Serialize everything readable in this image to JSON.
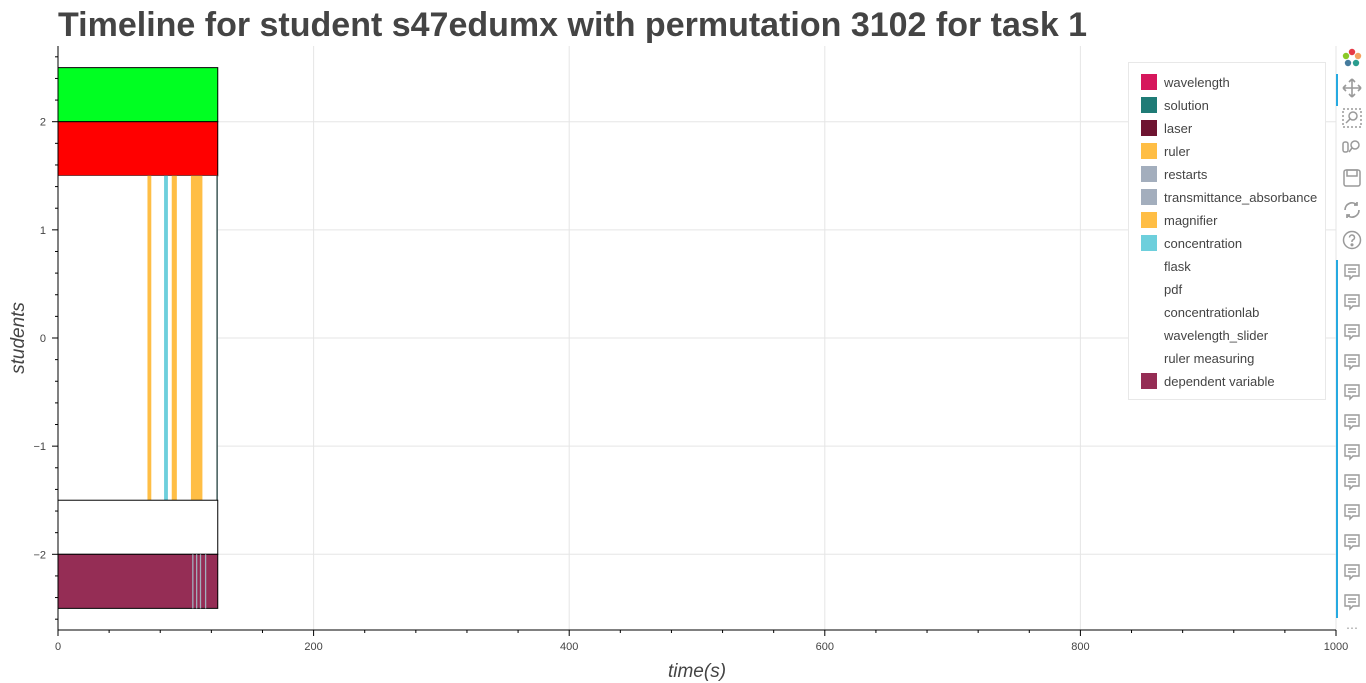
{
  "title": "Timeline for student s47edumx with permutation 3102 for task 1",
  "chart_data": {
    "type": "bar",
    "title": "Timeline for student s47edumx with permutation 3102 for task 1",
    "xlabel": "time(s)",
    "ylabel": "students",
    "xlim": [
      0,
      1000
    ],
    "ylim": [
      -2.7,
      2.7
    ],
    "x_ticks": [
      0,
      200,
      400,
      600,
      800,
      1000
    ],
    "y_ticks": [
      -2,
      -1,
      0,
      1,
      2
    ],
    "x_tick_labels": [
      "0",
      "200",
      "400",
      "600",
      "800",
      "1000"
    ],
    "y_tick_labels": [
      "−2",
      "−1",
      "0",
      "1",
      "2"
    ],
    "grid": true,
    "legend_position": "top-right",
    "legend": [
      {
        "name": "wavelength",
        "color": "#d6175c"
      },
      {
        "name": "solution",
        "color": "#1f7b76"
      },
      {
        "name": "laser",
        "color": "#6e1431"
      },
      {
        "name": "ruler",
        "color": "#ffbe45"
      },
      {
        "name": "restarts",
        "color": "#a3aebd"
      },
      {
        "name": "transmittance_absorbance",
        "color": "#a3aebd"
      },
      {
        "name": "magnifier",
        "color": "#ffbe45"
      },
      {
        "name": "concentration",
        "color": "#6dcfdc"
      },
      {
        "name": "flask",
        "color": "#ffffff"
      },
      {
        "name": "pdf",
        "color": "#ffffff"
      },
      {
        "name": "concentrationlab",
        "color": "#ffffff"
      },
      {
        "name": "wavelength_slider",
        "color": "#ffffff"
      },
      {
        "name": "ruler measuring",
        "color": "#ffffff"
      },
      {
        "name": "dependent variable",
        "color": "#952d55"
      }
    ],
    "bars": [
      {
        "name": "top-band",
        "x0": 0,
        "x1": 125,
        "y0": 2.0,
        "y1": 2.5,
        "color": "#00ff22",
        "outline": true
      },
      {
        "name": "red-band",
        "x0": 0,
        "x1": 125,
        "y0": 1.5,
        "y1": 2.0,
        "color": "#ff0000",
        "outline": true
      },
      {
        "name": "activity-band-bg",
        "x0": 0,
        "x1": 125,
        "y0": -1.5,
        "y1": 1.5,
        "color": "#ffffff",
        "outline": false
      },
      {
        "name": "ruler",
        "x0": 70,
        "x1": 73,
        "y0": -1.5,
        "y1": 1.5,
        "color": "#ffbe45",
        "outline": false
      },
      {
        "name": "concentration",
        "x0": 83,
        "x1": 86,
        "y0": -1.5,
        "y1": 1.5,
        "color": "#6dcfdc",
        "outline": false
      },
      {
        "name": "ruler",
        "x0": 89,
        "x1": 93,
        "y0": -1.5,
        "y1": 1.5,
        "color": "#ffbe45",
        "outline": false
      },
      {
        "name": "magnifier",
        "x0": 104,
        "x1": 113,
        "y0": -1.5,
        "y1": 1.5,
        "color": "#ffbe45",
        "outline": false
      },
      {
        "name": "solution",
        "x0": 124,
        "x1": 125,
        "y0": -1.5,
        "y1": 1.5,
        "color": "#1f3b3a",
        "outline": false
      },
      {
        "name": "empty-band",
        "x0": 0,
        "x1": 125,
        "y0": -2.0,
        "y1": -1.5,
        "color": "#ffffff",
        "outline": true
      },
      {
        "name": "dependent variable",
        "x0": 0,
        "x1": 125,
        "y0": -2.5,
        "y1": -2.0,
        "color": "#952d55",
        "outline": true
      },
      {
        "name": "restarts",
        "x0": 105,
        "x1": 106,
        "y0": -2.5,
        "y1": -2.0,
        "color": "#a3aebd",
        "outline": false
      },
      {
        "name": "transmittance_absorbance",
        "x0": 108,
        "x1": 109,
        "y0": -2.5,
        "y1": -2.0,
        "color": "#a3aebd",
        "outline": false
      },
      {
        "name": "restarts",
        "x0": 111,
        "x1": 112,
        "y0": -2.5,
        "y1": -2.0,
        "color": "#a3aebd",
        "outline": false
      },
      {
        "name": "transmittance_absorbance",
        "x0": 115,
        "x1": 116,
        "y0": -2.5,
        "y1": -2.0,
        "color": "#a3aebd",
        "outline": false
      }
    ]
  },
  "toolbar": {
    "tools": [
      "bokeh-logo-icon",
      "pan-icon",
      "box-zoom-icon",
      "wheel-zoom-icon",
      "save-icon",
      "reset-icon",
      "help-icon",
      "hover-icon",
      "hover-icon",
      "hover-icon",
      "hover-icon",
      "hover-icon",
      "hover-icon",
      "hover-icon",
      "hover-icon",
      "hover-icon",
      "hover-icon",
      "hover-icon",
      "hover-icon"
    ],
    "more_label": "⋯"
  }
}
